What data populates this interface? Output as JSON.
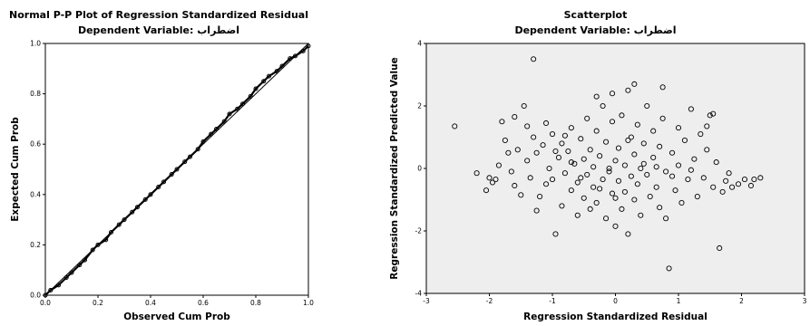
{
  "chart_data": [
    {
      "type": "line",
      "title": "Normal P-P Plot of Regression Standardized Residual",
      "subtitle": "Dependent Variable: اضطراب",
      "xlabel": "Observed Cum Prob",
      "ylabel": "Expected Cum Prob",
      "xlim": [
        0,
        1
      ],
      "ylim": [
        0,
        1
      ],
      "xticks": [
        "0.0",
        "0.2",
        "0.4",
        "0.6",
        "0.8",
        "1.0"
      ],
      "yticks": [
        "0.0",
        "0.2",
        "0.4",
        "0.6",
        "0.8",
        "1.0"
      ],
      "reference_line": [
        [
          0,
          0
        ],
        [
          1,
          1
        ]
      ],
      "series": [
        {
          "values": [
            [
              0.0,
              0.0
            ],
            [
              0.02,
              0.02
            ],
            [
              0.05,
              0.04
            ],
            [
              0.08,
              0.07
            ],
            [
              0.1,
              0.09
            ],
            [
              0.13,
              0.12
            ],
            [
              0.15,
              0.14
            ],
            [
              0.18,
              0.18
            ],
            [
              0.2,
              0.2
            ],
            [
              0.23,
              0.22
            ],
            [
              0.25,
              0.25
            ],
            [
              0.28,
              0.28
            ],
            [
              0.3,
              0.3
            ],
            [
              0.33,
              0.33
            ],
            [
              0.35,
              0.35
            ],
            [
              0.38,
              0.38
            ],
            [
              0.4,
              0.4
            ],
            [
              0.43,
              0.43
            ],
            [
              0.45,
              0.45
            ],
            [
              0.48,
              0.48
            ],
            [
              0.5,
              0.5
            ],
            [
              0.53,
              0.53
            ],
            [
              0.55,
              0.55
            ],
            [
              0.58,
              0.58
            ],
            [
              0.6,
              0.61
            ],
            [
              0.63,
              0.64
            ],
            [
              0.65,
              0.66
            ],
            [
              0.68,
              0.69
            ],
            [
              0.7,
              0.72
            ],
            [
              0.73,
              0.74
            ],
            [
              0.75,
              0.76
            ],
            [
              0.78,
              0.79
            ],
            [
              0.8,
              0.82
            ],
            [
              0.83,
              0.85
            ],
            [
              0.85,
              0.87
            ],
            [
              0.88,
              0.89
            ],
            [
              0.9,
              0.91
            ],
            [
              0.93,
              0.94
            ],
            [
              0.95,
              0.95
            ],
            [
              0.98,
              0.97
            ],
            [
              1.0,
              0.99
            ]
          ]
        }
      ]
    },
    {
      "type": "scatter",
      "title": "Scatterplot",
      "subtitle": "Dependent Variable: اضطراب",
      "xlabel": "Regression Standardized Residual",
      "ylabel": "Regression Standardized Predicted Value",
      "xlim": [
        -3,
        3
      ],
      "ylim": [
        -4,
        4
      ],
      "xticks": [
        "-3",
        "-2",
        "-1",
        "0",
        "1",
        "2",
        "3"
      ],
      "yticks": [
        "-4",
        "-2",
        "0",
        "2",
        "4"
      ],
      "series": [
        {
          "values": [
            [
              -2.55,
              1.35
            ],
            [
              -2.2,
              -0.15
            ],
            [
              -2.05,
              -0.7
            ],
            [
              -1.95,
              -0.45
            ],
            [
              -1.9,
              -0.35
            ],
            [
              -1.8,
              1.5
            ],
            [
              -1.75,
              0.9
            ],
            [
              -1.7,
              0.5
            ],
            [
              -1.65,
              -0.1
            ],
            [
              -1.6,
              1.65
            ],
            [
              -1.55,
              0.6
            ],
            [
              -1.5,
              -0.85
            ],
            [
              -1.45,
              2.0
            ],
            [
              -1.4,
              0.25
            ],
            [
              -1.35,
              -0.3
            ],
            [
              -1.3,
              1.0
            ],
            [
              -1.3,
              3.5
            ],
            [
              -1.25,
              -1.35
            ],
            [
              -1.2,
              -0.9
            ],
            [
              -1.15,
              0.75
            ],
            [
              -1.1,
              1.45
            ],
            [
              -1.1,
              -0.5
            ],
            [
              -1.05,
              0.0
            ],
            [
              -1.0,
              -0.35
            ],
            [
              -1.0,
              1.1
            ],
            [
              -0.95,
              -2.1
            ],
            [
              -0.9,
              0.35
            ],
            [
              -0.85,
              0.8
            ],
            [
              -0.85,
              -1.2
            ],
            [
              -0.8,
              -0.15
            ],
            [
              -0.75,
              0.55
            ],
            [
              -0.7,
              -0.7
            ],
            [
              -0.7,
              1.3
            ],
            [
              -0.65,
              0.15
            ],
            [
              -0.6,
              -0.45
            ],
            [
              -0.6,
              -1.5
            ],
            [
              -0.55,
              0.95
            ],
            [
              -0.5,
              0.3
            ],
            [
              -0.5,
              -0.95
            ],
            [
              -0.45,
              -0.2
            ],
            [
              -0.45,
              1.6
            ],
            [
              -0.4,
              0.6
            ],
            [
              -0.4,
              -1.3
            ],
            [
              -0.35,
              0.05
            ],
            [
              -0.35,
              -0.6
            ],
            [
              -0.3,
              1.2
            ],
            [
              -0.3,
              -1.1
            ],
            [
              -0.25,
              0.4
            ],
            [
              -0.2,
              -0.35
            ],
            [
              -0.2,
              2.0
            ],
            [
              -0.15,
              -1.6
            ],
            [
              -0.15,
              0.85
            ],
            [
              -0.1,
              -0.1
            ],
            [
              -0.1,
              0.0
            ],
            [
              -0.05,
              -0.8
            ],
            [
              -0.05,
              1.5
            ],
            [
              0.0,
              0.25
            ],
            [
              0.0,
              -1.85
            ],
            [
              0.05,
              0.65
            ],
            [
              0.05,
              -0.4
            ],
            [
              0.1,
              -1.3
            ],
            [
              0.1,
              1.7
            ],
            [
              0.15,
              0.1
            ],
            [
              0.15,
              -0.75
            ],
            [
              0.2,
              2.5
            ],
            [
              0.2,
              -2.1
            ],
            [
              0.25,
              -0.25
            ],
            [
              0.25,
              1.0
            ],
            [
              0.3,
              0.45
            ],
            [
              0.3,
              -1.0
            ],
            [
              0.35,
              -0.5
            ],
            [
              0.35,
              1.4
            ],
            [
              0.4,
              0.0
            ],
            [
              0.4,
              -1.5
            ],
            [
              0.45,
              0.8
            ],
            [
              0.5,
              -0.2
            ],
            [
              0.5,
              2.0
            ],
            [
              0.55,
              -0.9
            ],
            [
              0.6,
              0.35
            ],
            [
              0.6,
              1.2
            ],
            [
              0.65,
              -0.6
            ],
            [
              0.7,
              -1.25
            ],
            [
              0.7,
              0.7
            ],
            [
              0.75,
              1.6
            ],
            [
              0.8,
              -0.1
            ],
            [
              0.8,
              -1.6
            ],
            [
              0.85,
              -3.2
            ],
            [
              0.9,
              0.5
            ],
            [
              0.95,
              -0.7
            ],
            [
              1.0,
              1.3
            ],
            [
              1.0,
              0.1
            ],
            [
              1.05,
              -1.1
            ],
            [
              1.1,
              0.9
            ],
            [
              1.15,
              -0.35
            ],
            [
              1.2,
              1.9
            ],
            [
              1.25,
              0.3
            ],
            [
              1.3,
              -0.9
            ],
            [
              1.35,
              1.1
            ],
            [
              1.4,
              -0.3
            ],
            [
              1.45,
              0.6
            ],
            [
              1.5,
              1.7
            ],
            [
              1.55,
              -0.6
            ],
            [
              1.6,
              0.2
            ],
            [
              1.65,
              -2.55
            ],
            [
              1.7,
              -0.75
            ],
            [
              1.75,
              -0.4
            ],
            [
              1.8,
              -0.15
            ],
            [
              1.85,
              -0.6
            ],
            [
              1.95,
              -0.5
            ],
            [
              2.05,
              -0.35
            ],
            [
              2.15,
              -0.55
            ],
            [
              2.2,
              -0.35
            ],
            [
              2.3,
              -0.3
            ],
            [
              -1.85,
              0.1
            ],
            [
              -1.6,
              -0.55
            ],
            [
              -1.25,
              0.5
            ],
            [
              -0.95,
              0.55
            ],
            [
              -0.7,
              0.2
            ],
            [
              -0.55,
              -0.3
            ],
            [
              -0.25,
              -0.65
            ],
            [
              0.0,
              -0.95
            ],
            [
              0.2,
              0.9
            ],
            [
              0.45,
              0.15
            ],
            [
              0.65,
              0.05
            ],
            [
              0.9,
              -0.25
            ],
            [
              1.2,
              -0.05
            ],
            [
              1.45,
              1.35
            ],
            [
              -2.0,
              -0.3
            ],
            [
              -1.4,
              1.35
            ],
            [
              -0.3,
              2.3
            ],
            [
              0.3,
              2.7
            ],
            [
              1.55,
              1.75
            ],
            [
              0.75,
              2.6
            ],
            [
              -0.05,
              2.4
            ],
            [
              -0.8,
              1.05
            ]
          ]
        }
      ]
    }
  ]
}
